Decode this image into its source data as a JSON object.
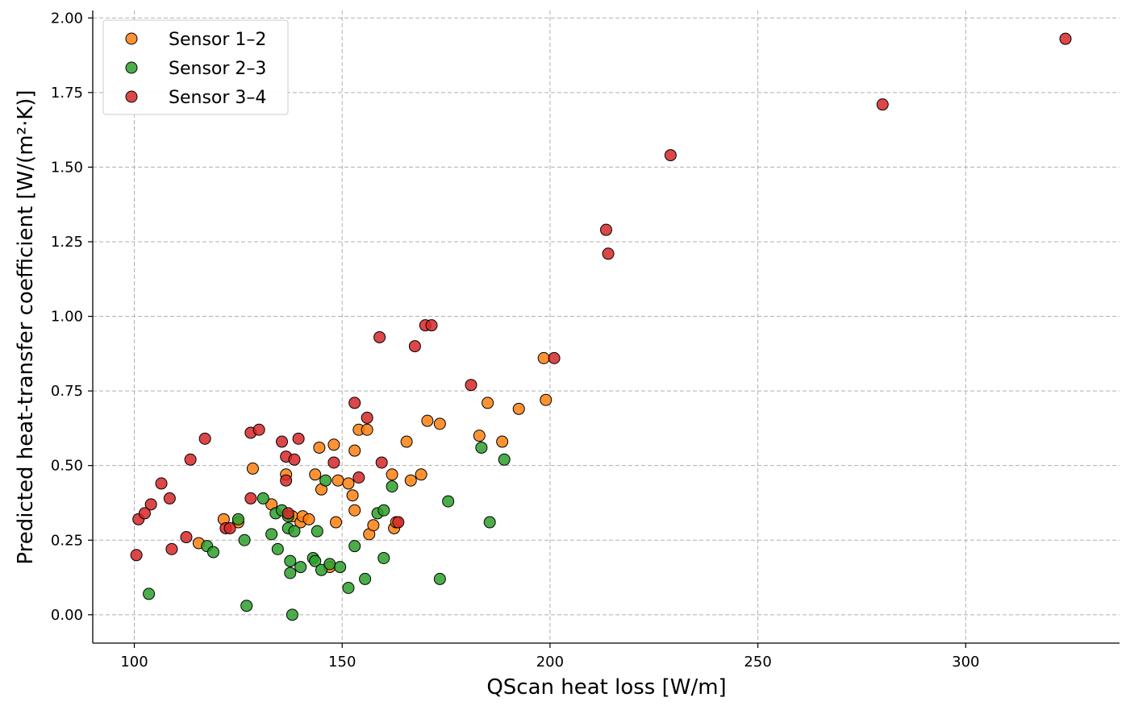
{
  "chart_data": {
    "type": "scatter",
    "title": "",
    "xlabel": "QScan heat loss [W/m]",
    "ylabel": "Predicted heat-transfer coefficient [W/(m²·K)]",
    "xlim": [
      90,
      337
    ],
    "ylim": [
      -0.095,
      2.025
    ],
    "xticks": [
      100,
      150,
      200,
      250,
      300
    ],
    "xtick_labels": [
      "100",
      "150",
      "200",
      "250",
      "300"
    ],
    "yticks": [
      0.0,
      0.25,
      0.5,
      0.75,
      1.0,
      1.25,
      1.5,
      1.75,
      2.0
    ],
    "ytick_labels": [
      "0.00",
      "0.25",
      "0.50",
      "0.75",
      "1.00",
      "1.25",
      "1.50",
      "1.75",
      "2.00"
    ],
    "grid": true,
    "legend_position": "top-left",
    "series": [
      {
        "name": "Sensor 1–2",
        "color": "#ff7f0e",
        "points": [
          [
            115.5,
            0.24
          ],
          [
            121.5,
            0.32
          ],
          [
            125.0,
            0.31
          ],
          [
            128.5,
            0.49
          ],
          [
            133.0,
            0.37
          ],
          [
            136.5,
            0.47
          ],
          [
            138.0,
            0.33
          ],
          [
            140.0,
            0.31
          ],
          [
            140.5,
            0.33
          ],
          [
            142.0,
            0.32
          ],
          [
            143.5,
            0.47
          ],
          [
            144.5,
            0.56
          ],
          [
            145.0,
            0.42
          ],
          [
            147.0,
            0.16
          ],
          [
            148.0,
            0.57
          ],
          [
            148.5,
            0.31
          ],
          [
            149.0,
            0.45
          ],
          [
            151.5,
            0.44
          ],
          [
            152.5,
            0.4
          ],
          [
            153.0,
            0.35
          ],
          [
            153.0,
            0.55
          ],
          [
            154.0,
            0.62
          ],
          [
            156.0,
            0.62
          ],
          [
            156.5,
            0.27
          ],
          [
            157.5,
            0.3
          ],
          [
            162.0,
            0.47
          ],
          [
            162.5,
            0.29
          ],
          [
            163.0,
            0.31
          ],
          [
            165.5,
            0.58
          ],
          [
            166.5,
            0.45
          ],
          [
            169.0,
            0.47
          ],
          [
            170.5,
            0.65
          ],
          [
            173.5,
            0.64
          ],
          [
            183.0,
            0.6
          ],
          [
            185.0,
            0.71
          ],
          [
            188.5,
            0.58
          ],
          [
            192.5,
            0.69
          ],
          [
            198.5,
            0.86
          ],
          [
            199.0,
            0.72
          ]
        ]
      },
      {
        "name": "Sensor 2–3",
        "color": "#2ca02c",
        "points": [
          [
            103.5,
            0.07
          ],
          [
            117.5,
            0.23
          ],
          [
            119.0,
            0.21
          ],
          [
            125.0,
            0.32
          ],
          [
            126.5,
            0.25
          ],
          [
            127.0,
            0.03
          ],
          [
            131.0,
            0.39
          ],
          [
            133.0,
            0.27
          ],
          [
            134.0,
            0.34
          ],
          [
            134.5,
            0.22
          ],
          [
            135.5,
            0.35
          ],
          [
            137.0,
            0.29
          ],
          [
            137.0,
            0.33
          ],
          [
            137.5,
            0.18
          ],
          [
            137.5,
            0.14
          ],
          [
            138.0,
            0.0
          ],
          [
            138.5,
            0.28
          ],
          [
            140.0,
            0.16
          ],
          [
            143.0,
            0.19
          ],
          [
            143.5,
            0.18
          ],
          [
            144.0,
            0.28
          ],
          [
            145.0,
            0.15
          ],
          [
            146.0,
            0.45
          ],
          [
            147.0,
            0.17
          ],
          [
            149.5,
            0.16
          ],
          [
            151.5,
            0.09
          ],
          [
            153.0,
            0.23
          ],
          [
            155.5,
            0.12
          ],
          [
            158.5,
            0.34
          ],
          [
            160.0,
            0.35
          ],
          [
            160.0,
            0.19
          ],
          [
            162.0,
            0.43
          ],
          [
            173.5,
            0.12
          ],
          [
            175.5,
            0.38
          ],
          [
            183.5,
            0.56
          ],
          [
            185.5,
            0.31
          ],
          [
            189.0,
            0.52
          ]
        ]
      },
      {
        "name": "Sensor 3–4",
        "color": "#d62728",
        "points": [
          [
            100.5,
            0.2
          ],
          [
            101.0,
            0.32
          ],
          [
            102.5,
            0.34
          ],
          [
            104.0,
            0.37
          ],
          [
            106.5,
            0.44
          ],
          [
            108.5,
            0.39
          ],
          [
            109.0,
            0.22
          ],
          [
            112.5,
            0.26
          ],
          [
            113.5,
            0.52
          ],
          [
            117.0,
            0.59
          ],
          [
            122.0,
            0.29
          ],
          [
            123.0,
            0.29
          ],
          [
            128.0,
            0.61
          ],
          [
            128.0,
            0.39
          ],
          [
            130.0,
            0.62
          ],
          [
            135.5,
            0.58
          ],
          [
            136.5,
            0.53
          ],
          [
            136.5,
            0.45
          ],
          [
            137.0,
            0.34
          ],
          [
            138.5,
            0.52
          ],
          [
            139.5,
            0.59
          ],
          [
            148.0,
            0.51
          ],
          [
            153.0,
            0.71
          ],
          [
            154.0,
            0.46
          ],
          [
            156.0,
            0.66
          ],
          [
            159.0,
            0.93
          ],
          [
            159.5,
            0.51
          ],
          [
            163.5,
            0.31
          ],
          [
            167.5,
            0.9
          ],
          [
            170.0,
            0.97
          ],
          [
            171.5,
            0.97
          ],
          [
            181.0,
            0.77
          ],
          [
            201.0,
            0.86
          ],
          [
            213.5,
            1.29
          ],
          [
            214.0,
            1.21
          ],
          [
            229.0,
            1.54
          ],
          [
            280.0,
            1.71
          ],
          [
            324.0,
            1.93
          ]
        ]
      }
    ]
  }
}
